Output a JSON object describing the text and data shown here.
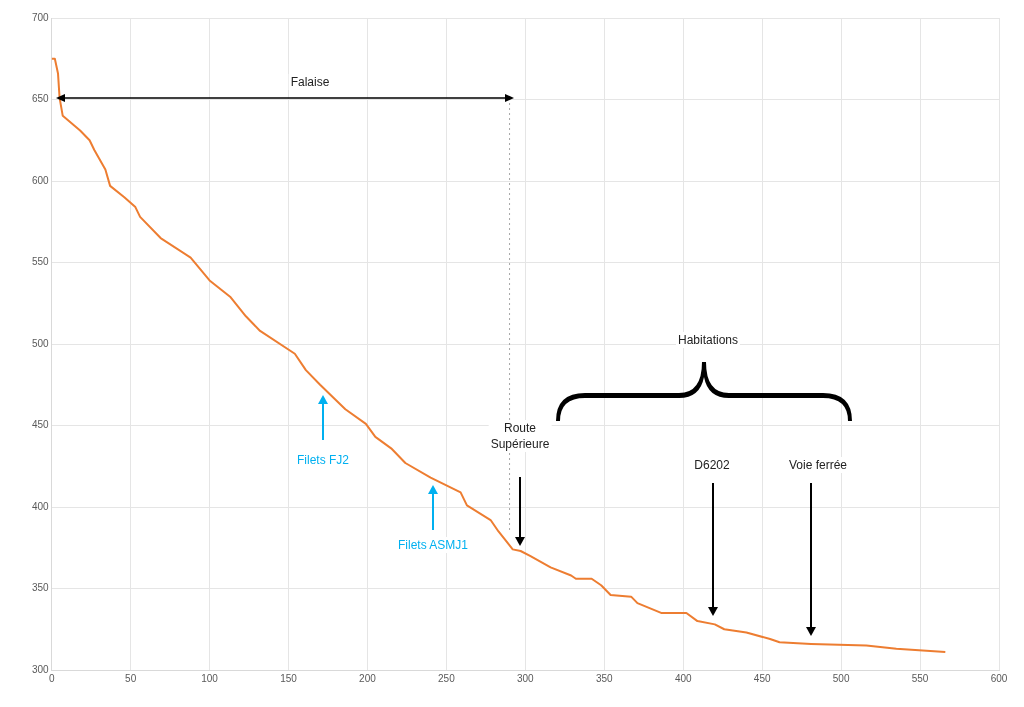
{
  "chart_data": {
    "type": "line",
    "x": [
      0,
      2,
      4,
      5,
      7,
      18,
      24,
      27,
      34,
      37,
      46,
      53,
      56,
      69,
      88,
      100,
      113,
      123,
      132,
      154,
      161,
      170,
      186,
      199,
      205,
      215,
      224,
      240,
      259,
      263,
      278,
      283,
      292,
      297,
      303,
      316,
      329,
      332,
      342,
      348,
      354,
      367,
      371,
      386,
      402,
      409,
      420,
      426,
      440,
      455,
      461,
      481,
      516,
      535,
      566
    ],
    "series": [
      {
        "color": "#ed7d31",
        "values": [
          675,
          675,
          666,
          651,
          640,
          631,
          625,
          619,
          607,
          597,
          590,
          584,
          578,
          565,
          553,
          539,
          529,
          517,
          508,
          494,
          484,
          475,
          460,
          451,
          443,
          436,
          427,
          418,
          409,
          401,
          392,
          385,
          374,
          373,
          370,
          363,
          358,
          356,
          356,
          352,
          346,
          345,
          341,
          335,
          335,
          330,
          328,
          325,
          323,
          319,
          317,
          316,
          315,
          313,
          311
        ]
      }
    ],
    "xlim": [
      0,
      600
    ],
    "xticks": [
      0,
      50,
      100,
      150,
      200,
      250,
      300,
      350,
      400,
      450,
      500,
      550,
      600
    ],
    "ylim": [
      300,
      700
    ],
    "yticks": [
      300,
      350,
      400,
      450,
      500,
      550,
      600,
      650,
      700
    ],
    "grid": true,
    "legend": false,
    "marker": "none",
    "line_style": "solid",
    "ref_lines": [
      {
        "axis": "x",
        "value": 290,
        "color": "#a6a6a6",
        "line_style": "dotted"
      }
    ],
    "annotations": [
      "Falaise",
      "Habitations",
      "Filets FJ2",
      "Filets ASMJ1",
      "Route Supérieure",
      "D6202",
      "Voie ferrée"
    ]
  }
}
